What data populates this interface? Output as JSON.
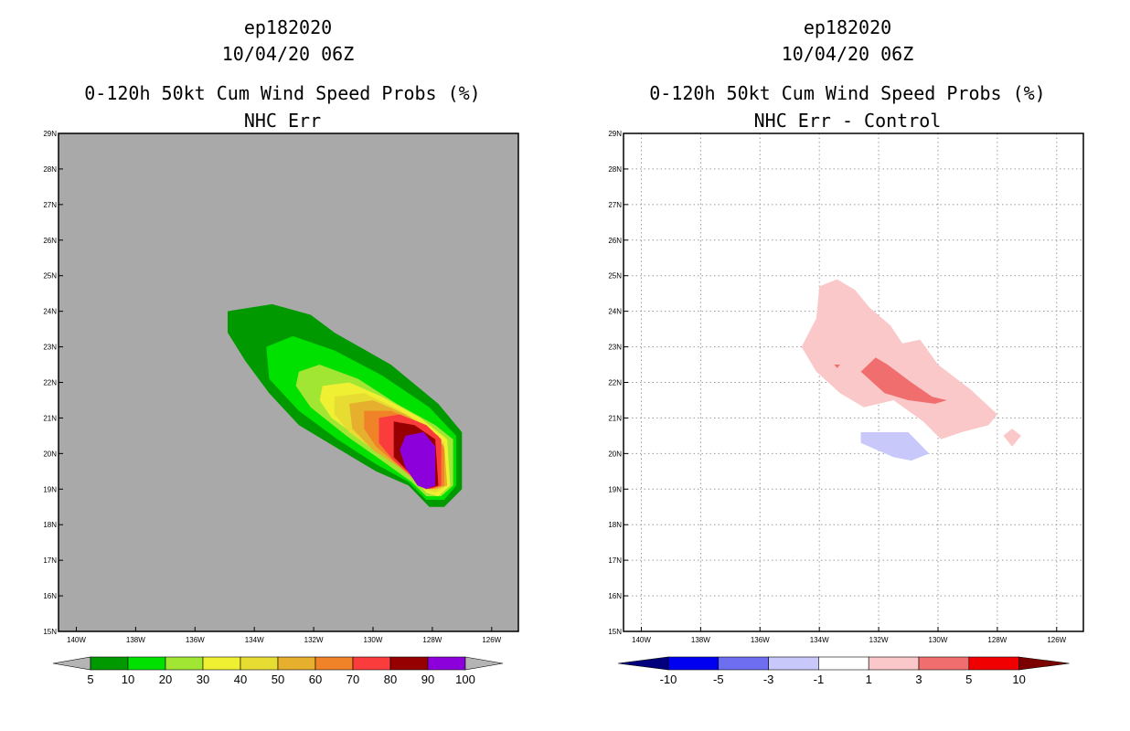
{
  "chart_data": [
    {
      "type": "heatmap",
      "storm_id": "ep182020",
      "date_line": "10/04/20 06Z",
      "title": "0-120h 50kt Cum Wind Speed Probs (%)",
      "subtitle": "NHC Err",
      "background_color": "#a9a9a9",
      "x_ticks": [
        "140W",
        "138W",
        "136W",
        "134W",
        "132W",
        "130W",
        "128W",
        "126W"
      ],
      "y_ticks": [
        "15N",
        "16N",
        "17N",
        "18N",
        "19N",
        "20N",
        "21N",
        "22N",
        "23N",
        "24N",
        "25N",
        "26N",
        "27N",
        "28N",
        "29N"
      ],
      "lon_range": [
        -140.6,
        -125.1
      ],
      "lat_range": [
        15,
        29
      ],
      "grid": false,
      "colorbar": {
        "labels": [
          "5",
          "10",
          "20",
          "30",
          "40",
          "50",
          "60",
          "70",
          "80",
          "90",
          "100"
        ],
        "colors": [
          "#b4b4b4",
          "#009a00",
          "#00e100",
          "#a0e632",
          "#f0f032",
          "#e6dc32",
          "#e6af2d",
          "#f08228",
          "#fa3c3c",
          "#960000",
          "#8c00dc",
          "#b4b4b4"
        ]
      },
      "contours": [
        {
          "level": 5,
          "color": "#009a00",
          "points": [
            [
              -134.9,
              24.0
            ],
            [
              -133.4,
              24.2
            ],
            [
              -132.1,
              23.9
            ],
            [
              -131.3,
              23.4
            ],
            [
              -129.4,
              22.5
            ],
            [
              -127.8,
              21.4
            ],
            [
              -127.0,
              20.6
            ],
            [
              -127.0,
              19.0
            ],
            [
              -127.6,
              18.5
            ],
            [
              -128.1,
              18.5
            ],
            [
              -128.8,
              19.1
            ],
            [
              -129.9,
              19.5
            ],
            [
              -131.3,
              20.2
            ],
            [
              -132.5,
              20.8
            ],
            [
              -133.5,
              21.7
            ],
            [
              -134.3,
              22.6
            ],
            [
              -134.9,
              23.4
            ]
          ]
        },
        {
          "level": 10,
          "color": "#00e100",
          "points": [
            [
              -133.6,
              23.0
            ],
            [
              -132.7,
              23.3
            ],
            [
              -131.3,
              22.9
            ],
            [
              -129.7,
              22.2
            ],
            [
              -128.1,
              21.3
            ],
            [
              -127.2,
              20.5
            ],
            [
              -127.2,
              19.1
            ],
            [
              -127.6,
              18.7
            ],
            [
              -128.2,
              18.7
            ],
            [
              -128.8,
              19.2
            ],
            [
              -129.9,
              19.7
            ],
            [
              -131.2,
              20.4
            ],
            [
              -132.5,
              21.2
            ],
            [
              -133.5,
              22.1
            ]
          ]
        },
        {
          "level": 20,
          "color": "#a0e632",
          "points": [
            [
              -132.5,
              22.3
            ],
            [
              -131.8,
              22.5
            ],
            [
              -130.5,
              22.1
            ],
            [
              -129.2,
              21.4
            ],
            [
              -127.9,
              20.8
            ],
            [
              -127.3,
              20.4
            ],
            [
              -127.3,
              19.1
            ],
            [
              -127.7,
              18.8
            ],
            [
              -128.2,
              18.8
            ],
            [
              -128.7,
              19.2
            ],
            [
              -129.7,
              19.8
            ],
            [
              -130.9,
              20.5
            ],
            [
              -132.1,
              21.3
            ],
            [
              -132.6,
              21.9
            ]
          ]
        },
        {
          "level": 30,
          "color": "#f0f032",
          "points": [
            [
              -131.7,
              21.9
            ],
            [
              -130.8,
              22.0
            ],
            [
              -129.7,
              21.6
            ],
            [
              -128.4,
              21.0
            ],
            [
              -127.5,
              20.4
            ],
            [
              -127.4,
              19.1
            ],
            [
              -127.8,
              18.8
            ],
            [
              -128.2,
              18.9
            ],
            [
              -128.6,
              19.3
            ],
            [
              -129.4,
              19.8
            ],
            [
              -130.4,
              20.4
            ],
            [
              -131.4,
              21.0
            ],
            [
              -131.8,
              21.5
            ]
          ]
        },
        {
          "level": 40,
          "color": "#e6dc32",
          "points": [
            [
              -131.3,
              21.6
            ],
            [
              -130.3,
              21.7
            ],
            [
              -129.3,
              21.3
            ],
            [
              -128.2,
              20.8
            ],
            [
              -127.6,
              20.3
            ],
            [
              -127.5,
              19.1
            ],
            [
              -127.9,
              18.9
            ],
            [
              -128.3,
              19.0
            ],
            [
              -128.9,
              19.5
            ],
            [
              -129.8,
              20.0
            ],
            [
              -130.8,
              20.6
            ],
            [
              -131.3,
              21.1
            ]
          ]
        },
        {
          "level": 50,
          "color": "#e6af2d",
          "points": [
            [
              -130.8,
              21.4
            ],
            [
              -130.0,
              21.5
            ],
            [
              -128.9,
              21.1
            ],
            [
              -128.0,
              20.6
            ],
            [
              -127.6,
              20.2
            ],
            [
              -127.5,
              19.1
            ],
            [
              -127.9,
              19.0
            ],
            [
              -128.4,
              19.1
            ],
            [
              -129.1,
              19.6
            ],
            [
              -130.0,
              20.1
            ],
            [
              -130.7,
              20.7
            ]
          ]
        },
        {
          "level": 60,
          "color": "#f08228",
          "points": [
            [
              -130.3,
              21.2
            ],
            [
              -129.4,
              21.2
            ],
            [
              -128.5,
              20.9
            ],
            [
              -127.8,
              20.5
            ],
            [
              -127.6,
              20.1
            ],
            [
              -127.6,
              19.1
            ],
            [
              -128.0,
              19.0
            ],
            [
              -128.5,
              19.2
            ],
            [
              -129.2,
              19.7
            ],
            [
              -129.9,
              20.2
            ],
            [
              -130.3,
              20.7
            ]
          ]
        },
        {
          "level": 70,
          "color": "#fa3c3c",
          "points": [
            [
              -129.8,
              21.0
            ],
            [
              -129.1,
              21.1
            ],
            [
              -128.2,
              20.8
            ],
            [
              -127.7,
              20.4
            ],
            [
              -127.7,
              19.1
            ],
            [
              -128.1,
              19.0
            ],
            [
              -128.6,
              19.3
            ],
            [
              -129.3,
              19.8
            ],
            [
              -129.8,
              20.3
            ]
          ]
        },
        {
          "level": 80,
          "color": "#960000",
          "points": [
            [
              -129.3,
              20.9
            ],
            [
              -128.6,
              20.8
            ],
            [
              -127.9,
              20.4
            ],
            [
              -127.8,
              19.1
            ],
            [
              -128.2,
              19.0
            ],
            [
              -128.7,
              19.4
            ],
            [
              -129.3,
              19.9
            ]
          ]
        },
        {
          "level": 90,
          "color": "#8c00dc",
          "points": [
            [
              -128.9,
              20.5
            ],
            [
              -128.3,
              20.6
            ],
            [
              -127.9,
              20.2
            ],
            [
              -127.9,
              19.1
            ],
            [
              -128.2,
              19.0
            ],
            [
              -128.5,
              19.1
            ],
            [
              -128.9,
              19.6
            ],
            [
              -129.1,
              20.1
            ]
          ]
        }
      ]
    },
    {
      "type": "heatmap",
      "storm_id": "ep182020",
      "date_line": "10/04/20 06Z",
      "title": "0-120h 50kt Cum Wind Speed Probs (%)",
      "subtitle": "NHC Err - Control",
      "background_color": "#ffffff",
      "x_ticks": [
        "140W",
        "138W",
        "136W",
        "134W",
        "132W",
        "130W",
        "128W",
        "126W"
      ],
      "y_ticks": [
        "15N",
        "16N",
        "17N",
        "18N",
        "19N",
        "20N",
        "21N",
        "22N",
        "23N",
        "24N",
        "25N",
        "26N",
        "27N",
        "28N",
        "29N"
      ],
      "lon_range": [
        -140.6,
        -125.1
      ],
      "lat_range": [
        15,
        29
      ],
      "grid": true,
      "colorbar": {
        "labels": [
          "-10",
          "-5",
          "-3",
          "-1",
          "1",
          "3",
          "5",
          "10"
        ],
        "colors": [
          "#00007d",
          "#0000f0",
          "#6e6ef0",
          "#c8c8fa",
          "#ffffff",
          "#fac8c8",
          "#f06e6e",
          "#f00000",
          "#7d0000"
        ]
      },
      "contours": [
        {
          "level": 1,
          "color": "#fac8c8",
          "points": [
            [
              -134.0,
              24.7
            ],
            [
              -133.4,
              24.9
            ],
            [
              -132.8,
              24.6
            ],
            [
              -132.3,
              24.1
            ],
            [
              -131.6,
              23.6
            ],
            [
              -131.2,
              23.1
            ],
            [
              -130.6,
              23.2
            ],
            [
              -130.0,
              22.5
            ],
            [
              -128.9,
              21.8
            ],
            [
              -128.0,
              21.1
            ],
            [
              -128.3,
              20.8
            ],
            [
              -129.2,
              20.6
            ],
            [
              -129.9,
              20.4
            ],
            [
              -130.5,
              20.9
            ],
            [
              -131.5,
              21.5
            ],
            [
              -132.5,
              21.3
            ],
            [
              -133.3,
              21.7
            ],
            [
              -134.1,
              22.3
            ],
            [
              -134.6,
              23.0
            ],
            [
              -134.1,
              23.8
            ]
          ]
        },
        {
          "level": 1,
          "color": "#fac8c8",
          "points": [
            [
              -127.5,
              20.7
            ],
            [
              -127.2,
              20.5
            ],
            [
              -127.5,
              20.2
            ],
            [
              -127.8,
              20.5
            ]
          ]
        },
        {
          "level": 3,
          "color": "#f06e6e",
          "points": [
            [
              -132.1,
              22.7
            ],
            [
              -131.7,
              22.5
            ],
            [
              -130.9,
              22.0
            ],
            [
              -130.2,
              21.6
            ],
            [
              -129.7,
              21.5
            ],
            [
              -130.1,
              21.4
            ],
            [
              -131.0,
              21.5
            ],
            [
              -131.8,
              21.7
            ],
            [
              -132.6,
              22.3
            ]
          ]
        },
        {
          "level": 3,
          "color": "#f06e6e",
          "points": [
            [
              -133.5,
              22.5
            ],
            [
              -133.3,
              22.5
            ],
            [
              -133.4,
              22.4
            ]
          ]
        },
        {
          "level": -1,
          "color": "#c8c8fa",
          "points": [
            [
              -132.6,
              20.6
            ],
            [
              -131.0,
              20.6
            ],
            [
              -130.3,
              20.0
            ],
            [
              -130.9,
              19.8
            ],
            [
              -131.5,
              19.9
            ],
            [
              -132.6,
              20.3
            ]
          ]
        }
      ]
    }
  ]
}
